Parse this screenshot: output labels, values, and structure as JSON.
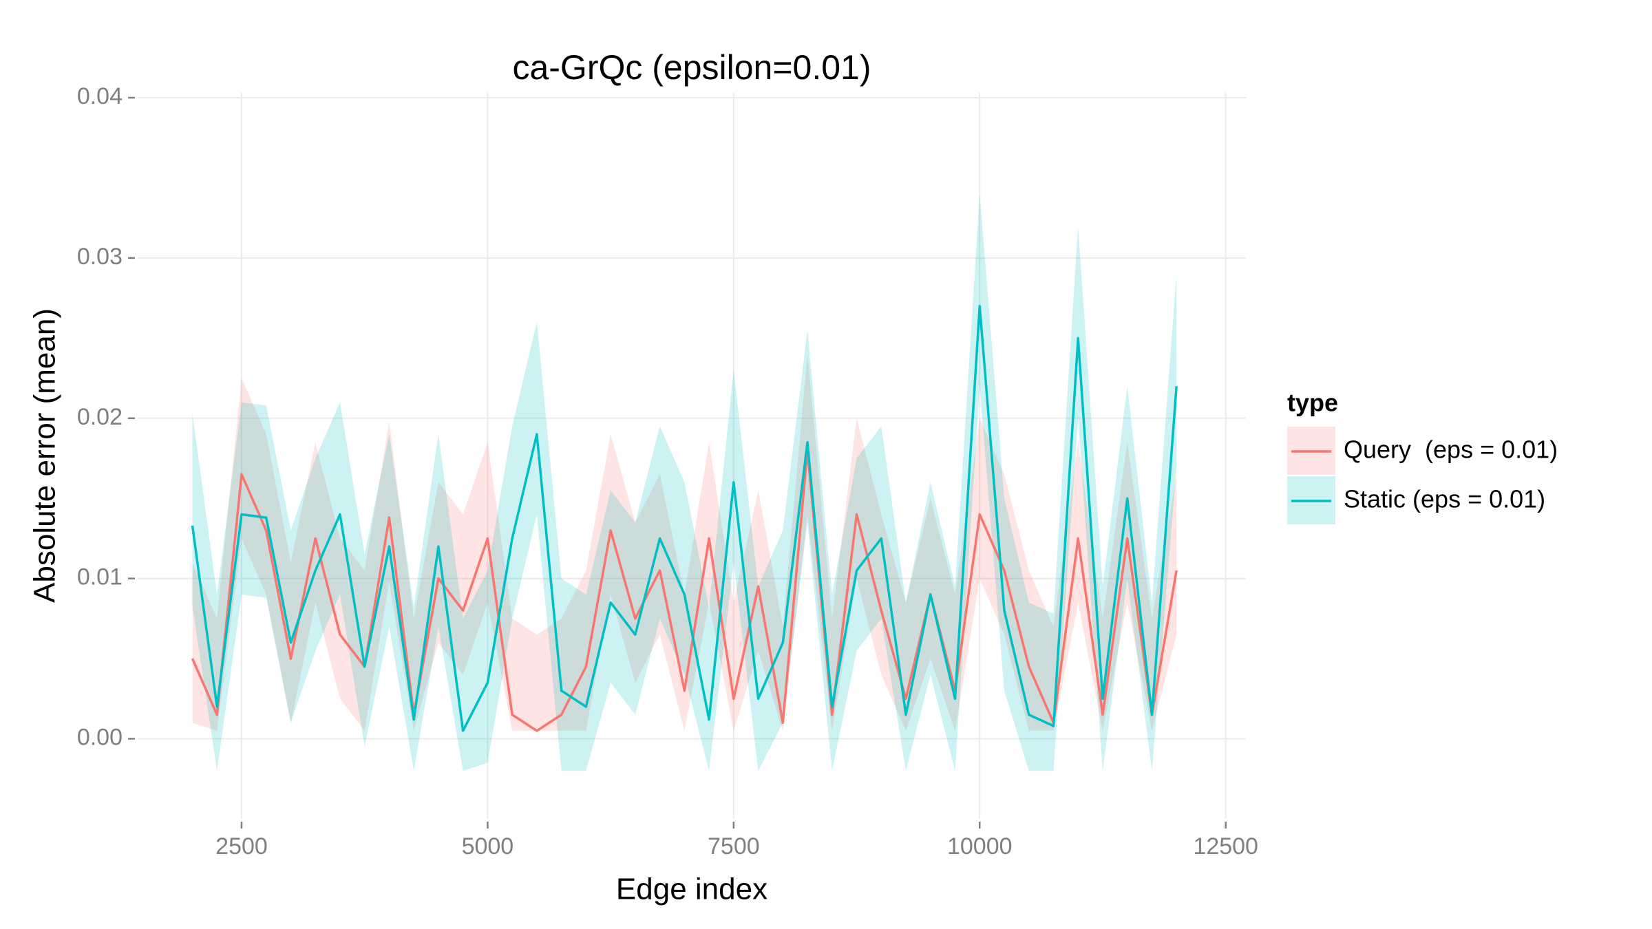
{
  "chart_data": {
    "type": "line",
    "title": "ca-GrQc (epsilon=0.01)",
    "xlabel": "Edge index",
    "ylabel": "Absolute error (mean)",
    "legend_title": "type",
    "legend": "right",
    "grid": true,
    "x": [
      2000,
      2250,
      2500,
      2750,
      3000,
      3250,
      3500,
      3750,
      4000,
      4250,
      4500,
      4750,
      5000,
      5250,
      5500,
      5750,
      6000,
      6250,
      6500,
      6750,
      7000,
      7250,
      7500,
      7750,
      8000,
      8250,
      8500,
      8750,
      9000,
      9250,
      9500,
      9750,
      10000,
      10250,
      10500,
      10750,
      11000,
      11250,
      11500,
      11750,
      12000
    ],
    "series": [
      {
        "name": "Query  (eps = 0.01)",
        "color": "#F8766D",
        "values": [
          0.005,
          0.0015,
          0.0165,
          0.013,
          0.005,
          0.0125,
          0.0065,
          0.0045,
          0.0138,
          0.0015,
          0.01,
          0.008,
          0.0125,
          0.0015,
          0.0005,
          0.0015,
          0.0045,
          0.013,
          0.0075,
          0.0105,
          0.003,
          0.0125,
          0.0025,
          0.0095,
          0.001,
          0.018,
          0.0015,
          0.014,
          0.008,
          0.0025,
          0.009,
          0.003,
          0.014,
          0.0105,
          0.0045,
          0.001,
          0.0125,
          0.0015,
          0.0125,
          0.0015,
          0.0105
        ],
        "upper": [
          0.011,
          0.0075,
          0.0225,
          0.019,
          0.011,
          0.0185,
          0.0125,
          0.0105,
          0.0198,
          0.0075,
          0.016,
          0.014,
          0.0185,
          0.0075,
          0.0065,
          0.0075,
          0.0105,
          0.019,
          0.0135,
          0.0165,
          0.009,
          0.0185,
          0.0085,
          0.0155,
          0.007,
          0.024,
          0.0075,
          0.02,
          0.014,
          0.0085,
          0.015,
          0.009,
          0.02,
          0.0165,
          0.0105,
          0.007,
          0.0185,
          0.0075,
          0.0185,
          0.0075,
          0.0165
        ],
        "lower": [
          0.001,
          0.0005,
          0.0125,
          0.009,
          0.001,
          0.0085,
          0.0025,
          0.0005,
          0.0098,
          0.0005,
          0.006,
          0.004,
          0.0085,
          0.0005,
          0.0005,
          0.0005,
          0.0005,
          0.009,
          0.0035,
          0.0065,
          0.0005,
          0.0085,
          0.0005,
          0.0055,
          0.0005,
          0.014,
          0.0005,
          0.01,
          0.004,
          0.0005,
          0.005,
          0.0005,
          0.01,
          0.0065,
          0.0005,
          0.0005,
          0.0085,
          0.0005,
          0.0085,
          0.0005,
          0.0065
        ]
      },
      {
        "name": "Static (eps = 0.01)",
        "color": "#00BFC4",
        "values": [
          0.0133,
          0.002,
          0.014,
          0.0138,
          0.006,
          0.0105,
          0.014,
          0.0045,
          0.012,
          0.0012,
          0.012,
          0.0005,
          0.0035,
          0.0125,
          0.019,
          0.003,
          0.002,
          0.0085,
          0.0065,
          0.0125,
          0.009,
          0.0012,
          0.016,
          0.0025,
          0.006,
          0.0185,
          0.002,
          0.0105,
          0.0125,
          0.0015,
          0.009,
          0.0025,
          0.027,
          0.008,
          0.0015,
          0.0008,
          0.025,
          0.0025,
          0.015,
          0.0015,
          0.022
        ],
        "upper": [
          0.0203,
          0.009,
          0.021,
          0.0208,
          0.013,
          0.0175,
          0.021,
          0.0115,
          0.019,
          0.0082,
          0.019,
          0.0075,
          0.0105,
          0.0195,
          0.026,
          0.01,
          0.009,
          0.0155,
          0.0135,
          0.0195,
          0.016,
          0.0082,
          0.023,
          0.0095,
          0.013,
          0.0255,
          0.009,
          0.0175,
          0.0195,
          0.0085,
          0.016,
          0.0095,
          0.034,
          0.015,
          0.0085,
          0.0078,
          0.032,
          0.0095,
          0.022,
          0.0085,
          0.029
        ],
        "lower": [
          0.0083,
          -0.002,
          0.009,
          0.0088,
          0.001,
          0.0055,
          0.009,
          -0.0005,
          0.007,
          -0.002,
          0.007,
          -0.002,
          -0.0015,
          0.0075,
          0.014,
          -0.002,
          -0.002,
          0.0035,
          0.0015,
          0.0075,
          0.004,
          -0.002,
          0.011,
          -0.002,
          0.001,
          0.0135,
          -0.002,
          0.0055,
          0.0075,
          -0.002,
          0.004,
          -0.002,
          0.022,
          0.003,
          -0.002,
          -0.002,
          0.02,
          -0.002,
          0.01,
          -0.002,
          0.017
        ]
      }
    ],
    "xlim": [
      1444,
      12705
    ],
    "xticks": [
      2500,
      5000,
      7500,
      10000,
      12500
    ],
    "ylim": [
      -0.005,
      0.0403
    ],
    "yticks": [
      {
        "value": 0,
        "label": "0.00"
      },
      {
        "value": 0.01,
        "label": "0.01"
      },
      {
        "value": 0.02,
        "label": "0.02"
      },
      {
        "value": 0.03,
        "label": "0.03"
      },
      {
        "value": 0.04,
        "label": "0.04"
      }
    ]
  }
}
